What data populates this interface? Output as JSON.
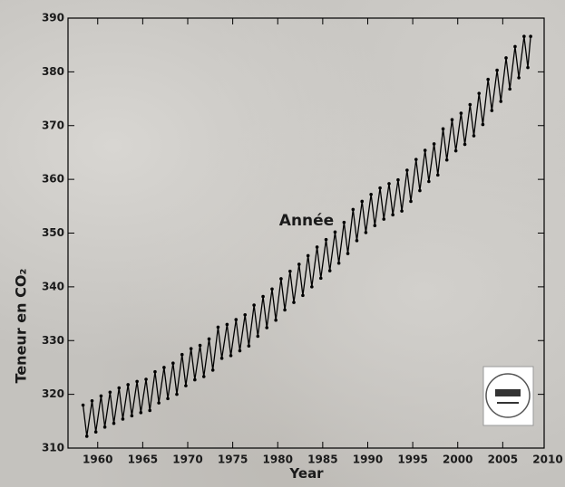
{
  "chart_data": {
    "type": "line",
    "annotation": "Année",
    "x_label": "Year",
    "y_label": "Teneur en CO₂",
    "xlim": [
      1956.7,
      2009.6
    ],
    "ylim": [
      310,
      390
    ],
    "xticks": [
      1960,
      1965,
      1970,
      1975,
      1980,
      1985,
      1990,
      1995,
      2000,
      2005,
      2010
    ],
    "yticks": [
      310,
      320,
      330,
      340,
      350,
      360,
      370,
      380,
      390
    ],
    "series": [
      {
        "color": "#000000",
        "x": [
          1958.37,
          1958.79,
          1959.37,
          1959.79,
          1960.37,
          1960.79,
          1961.37,
          1961.79,
          1962.37,
          1962.79,
          1963.37,
          1963.79,
          1964.37,
          1964.79,
          1965.37,
          1965.79,
          1966.37,
          1966.79,
          1967.37,
          1967.79,
          1968.37,
          1968.79,
          1969.37,
          1969.79,
          1970.37,
          1970.79,
          1971.37,
          1971.79,
          1972.37,
          1972.79,
          1973.37,
          1973.79,
          1974.37,
          1974.79,
          1975.37,
          1975.79,
          1976.37,
          1976.79,
          1977.37,
          1977.79,
          1978.37,
          1978.79,
          1979.37,
          1979.79,
          1980.37,
          1980.79,
          1981.37,
          1981.79,
          1982.37,
          1982.79,
          1983.37,
          1983.79,
          1984.37,
          1984.79,
          1985.37,
          1985.79,
          1986.37,
          1986.79,
          1987.37,
          1987.79,
          1988.37,
          1988.79,
          1989.37,
          1989.79,
          1990.37,
          1990.79,
          1991.37,
          1991.79,
          1992.37,
          1992.79,
          1993.37,
          1993.79,
          1994.37,
          1994.79,
          1995.37,
          1995.79,
          1996.37,
          1996.79,
          1997.37,
          1997.79,
          1998.37,
          1998.79,
          1999.37,
          1999.79,
          2000.37,
          2000.79,
          2001.37,
          2001.79,
          2002.37,
          2002.79,
          2003.37,
          2003.79,
          2004.37,
          2004.79,
          2005.37,
          2005.79,
          2006.37,
          2006.79,
          2007.37,
          2007.79,
          2008.1
        ],
        "values": [
          318.0,
          312.2,
          318.8,
          313.0,
          319.7,
          313.9,
          320.4,
          314.6,
          321.2,
          315.4,
          321.8,
          316.0,
          322.4,
          316.6,
          322.8,
          317.0,
          324.2,
          318.4,
          325.0,
          319.2,
          325.8,
          320.0,
          327.4,
          321.6,
          328.5,
          322.7,
          329.1,
          323.3,
          330.3,
          324.5,
          332.5,
          326.7,
          333.0,
          327.2,
          333.9,
          328.1,
          334.8,
          329.0,
          336.6,
          330.8,
          338.2,
          332.4,
          339.6,
          333.8,
          341.5,
          335.7,
          342.9,
          337.1,
          344.2,
          338.4,
          345.8,
          340.0,
          347.4,
          341.6,
          348.8,
          343.0,
          350.2,
          344.4,
          352.0,
          346.2,
          354.4,
          348.6,
          355.9,
          350.1,
          357.2,
          351.4,
          358.4,
          352.6,
          359.2,
          353.4,
          359.9,
          354.1,
          361.7,
          355.9,
          363.7,
          357.9,
          365.4,
          359.6,
          366.6,
          360.8,
          369.4,
          363.6,
          371.1,
          365.3,
          372.3,
          366.5,
          373.9,
          368.1,
          376.0,
          370.2,
          378.6,
          372.8,
          380.3,
          374.5,
          382.6,
          376.8,
          384.7,
          378.9,
          386.6,
          380.8,
          386.6
        ]
      }
    ]
  }
}
